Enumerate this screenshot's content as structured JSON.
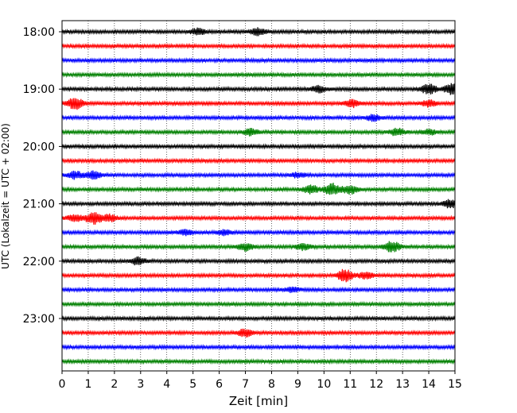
{
  "chart_data": {
    "type": "line",
    "title": "",
    "xlabel": "Zeit  [min]",
    "ylabel": "UTC (Lokalzeit = UTC + 02:00)",
    "xlim": [
      0,
      15
    ],
    "x_ticks": [
      "0",
      "1",
      "2",
      "3",
      "4",
      "5",
      "6",
      "7",
      "8",
      "9",
      "10",
      "11",
      "12",
      "13",
      "14",
      "15"
    ],
    "y_ticks": [
      "18:00",
      "19:00",
      "20:00",
      "21:00",
      "22:00",
      "23:00"
    ],
    "grid": "vertical dotted",
    "trace_interval_min": 15,
    "colors": [
      "#000000",
      "#ff0000",
      "#0000ff",
      "#008000"
    ],
    "traces": [
      {
        "start": "18:00",
        "color": "#000000",
        "bursts": [
          [
            5.2,
            0.5
          ],
          [
            7.5,
            0.6
          ]
        ]
      },
      {
        "start": "18:15",
        "color": "#ff0000",
        "bursts": []
      },
      {
        "start": "18:30",
        "color": "#0000ff",
        "bursts": []
      },
      {
        "start": "18:45",
        "color": "#008000",
        "bursts": []
      },
      {
        "start": "19:00",
        "color": "#000000",
        "bursts": [
          [
            9.8,
            0.5
          ],
          [
            14.0,
            0.8
          ],
          [
            14.9,
            1.0
          ]
        ]
      },
      {
        "start": "19:15",
        "color": "#ff0000",
        "bursts": [
          [
            0.5,
            1.0
          ],
          [
            11.1,
            0.6
          ],
          [
            14.0,
            0.5
          ]
        ]
      },
      {
        "start": "19:30",
        "color": "#0000ff",
        "bursts": [
          [
            11.9,
            0.5
          ]
        ]
      },
      {
        "start": "19:45",
        "color": "#008000",
        "bursts": [
          [
            7.2,
            0.5
          ],
          [
            12.8,
            0.6
          ],
          [
            14.0,
            0.4
          ]
        ]
      },
      {
        "start": "20:00",
        "color": "#000000",
        "bursts": []
      },
      {
        "start": "20:15",
        "color": "#ff0000",
        "bursts": []
      },
      {
        "start": "20:30",
        "color": "#0000ff",
        "bursts": [
          [
            0.5,
            0.6
          ],
          [
            1.2,
            0.6
          ],
          [
            9.0,
            0.4
          ]
        ]
      },
      {
        "start": "20:45",
        "color": "#008000",
        "bursts": [
          [
            9.5,
            0.7
          ],
          [
            10.3,
            1.0
          ],
          [
            11.0,
            0.7
          ]
        ]
      },
      {
        "start": "21:00",
        "color": "#000000",
        "bursts": [
          [
            14.8,
            0.7
          ]
        ]
      },
      {
        "start": "21:15",
        "color": "#ff0000",
        "bursts": [
          [
            0.5,
            0.6
          ],
          [
            1.2,
            1.0
          ],
          [
            1.8,
            0.6
          ]
        ]
      },
      {
        "start": "21:30",
        "color": "#0000ff",
        "bursts": [
          [
            4.7,
            0.4
          ],
          [
            6.2,
            0.4
          ]
        ]
      },
      {
        "start": "21:45",
        "color": "#008000",
        "bursts": [
          [
            7.0,
            0.6
          ],
          [
            9.2,
            0.5
          ],
          [
            12.6,
            0.9
          ]
        ]
      },
      {
        "start": "22:00",
        "color": "#000000",
        "bursts": [
          [
            2.9,
            0.6
          ]
        ]
      },
      {
        "start": "22:15",
        "color": "#ff0000",
        "bursts": [
          [
            10.8,
            1.0
          ],
          [
            11.6,
            0.5
          ]
        ]
      },
      {
        "start": "22:30",
        "color": "#0000ff",
        "bursts": [
          [
            8.8,
            0.4
          ]
        ]
      },
      {
        "start": "22:45",
        "color": "#008000",
        "bursts": []
      },
      {
        "start": "23:00",
        "color": "#000000",
        "bursts": []
      },
      {
        "start": "23:15",
        "color": "#ff0000",
        "bursts": [
          [
            7.0,
            0.7
          ]
        ]
      },
      {
        "start": "23:30",
        "color": "#0000ff",
        "bursts": []
      },
      {
        "start": "23:45",
        "color": "#008000",
        "bursts": []
      }
    ]
  }
}
